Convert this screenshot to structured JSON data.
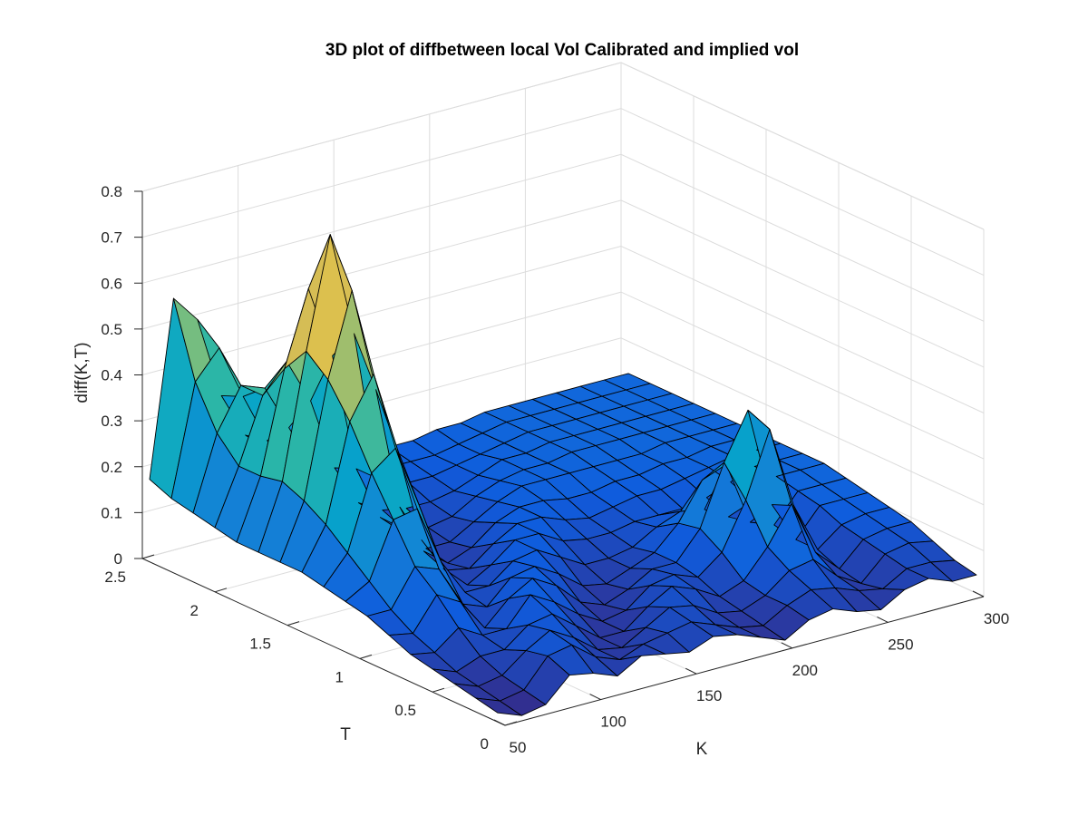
{
  "chart_data": {
    "type": "surface",
    "title": "3D plot of diffbetween local Vol Calibrated and implied vol",
    "xlabel": "K",
    "ylabel": "T",
    "zlabel": "diff(K,T)",
    "xlim": [
      50,
      300
    ],
    "ylim": [
      0,
      2.5
    ],
    "zlim": [
      0,
      0.8
    ],
    "xticks": [
      "50",
      "100",
      "150",
      "200",
      "250",
      "300"
    ],
    "yticks": [
      "0",
      "0.5",
      "1",
      "1.5",
      "2",
      "2.5"
    ],
    "zticks": [
      "0",
      "0.1",
      "0.2",
      "0.3",
      "0.4",
      "0.5",
      "0.6",
      "0.7",
      "0.8"
    ],
    "grid": true,
    "colormap": "parula",
    "colors": {
      "parula": [
        "#352a87",
        "#0f5cdd",
        "#1481d6",
        "#06a4ca",
        "#2eb7a4",
        "#87bf77",
        "#d1bb59",
        "#fcce2e",
        "#f9fb0e"
      ],
      "grid": "#dcdcdc",
      "axis": "#262626",
      "edge": "#000000"
    },
    "K": [
      50,
      62.5,
      75,
      87.5,
      100,
      112.5,
      125,
      137.5,
      150,
      162.5,
      175,
      187.5,
      200,
      212.5,
      225,
      237.5,
      250,
      262.5,
      275,
      287.5,
      300
    ],
    "T": [
      0.05,
      0.2,
      0.35,
      0.5,
      0.65,
      0.8,
      0.95,
      1.1,
      1.25,
      1.4,
      1.55,
      1.7,
      1.85,
      2.0,
      2.15,
      2.3,
      2.45
    ],
    "diff": [
      [
        0.02,
        0.0,
        0.01,
        0.06,
        0.05,
        0.03,
        0.06,
        0.05,
        0.04,
        0.06,
        0.05,
        0.03,
        0.01,
        0.04,
        0.05,
        0.03,
        0.02,
        0.05,
        0.06,
        0.04,
        0.04
      ],
      [
        0.03,
        0.01,
        0.02,
        0.08,
        0.09,
        0.05,
        0.03,
        0.05,
        0.06,
        0.07,
        0.05,
        0.03,
        0.02,
        0.05,
        0.07,
        0.06,
        0.04,
        0.03,
        0.06,
        0.06,
        0.05
      ],
      [
        0.04,
        0.02,
        0.03,
        0.07,
        0.1,
        0.07,
        0.03,
        0.02,
        0.05,
        0.08,
        0.07,
        0.04,
        0.03,
        0.05,
        0.09,
        0.1,
        0.05,
        0.02,
        0.07,
        0.08,
        0.07
      ],
      [
        0.05,
        0.03,
        0.05,
        0.05,
        0.09,
        0.1,
        0.06,
        0.02,
        0.02,
        0.06,
        0.09,
        0.07,
        0.04,
        0.06,
        0.12,
        0.2,
        0.08,
        0.03,
        0.08,
        0.09,
        0.09
      ],
      [
        0.06,
        0.05,
        0.09,
        0.06,
        0.06,
        0.12,
        0.09,
        0.05,
        0.02,
        0.03,
        0.07,
        0.08,
        0.06,
        0.1,
        0.2,
        0.34,
        0.16,
        0.05,
        0.09,
        0.1,
        0.1
      ],
      [
        0.08,
        0.07,
        0.14,
        0.11,
        0.04,
        0.09,
        0.12,
        0.09,
        0.04,
        0.02,
        0.04,
        0.07,
        0.07,
        0.13,
        0.26,
        0.36,
        0.14,
        0.05,
        0.11,
        0.11,
        0.11
      ],
      [
        0.1,
        0.1,
        0.18,
        0.16,
        0.07,
        0.05,
        0.1,
        0.11,
        0.08,
        0.04,
        0.03,
        0.05,
        0.07,
        0.12,
        0.2,
        0.22,
        0.08,
        0.06,
        0.12,
        0.12,
        0.12
      ],
      [
        0.11,
        0.14,
        0.26,
        0.27,
        0.14,
        0.06,
        0.06,
        0.1,
        0.11,
        0.08,
        0.05,
        0.05,
        0.06,
        0.09,
        0.11,
        0.1,
        0.07,
        0.09,
        0.13,
        0.13,
        0.13
      ],
      [
        0.12,
        0.18,
        0.34,
        0.38,
        0.24,
        0.09,
        0.04,
        0.07,
        0.11,
        0.11,
        0.08,
        0.07,
        0.07,
        0.08,
        0.08,
        0.08,
        0.09,
        0.11,
        0.13,
        0.13,
        0.13
      ],
      [
        0.13,
        0.22,
        0.43,
        0.52,
        0.34,
        0.13,
        0.05,
        0.04,
        0.08,
        0.11,
        0.11,
        0.09,
        0.08,
        0.09,
        0.1,
        0.1,
        0.11,
        0.12,
        0.13,
        0.13,
        0.13
      ],
      [
        0.13,
        0.25,
        0.5,
        0.68,
        0.45,
        0.18,
        0.07,
        0.03,
        0.05,
        0.09,
        0.11,
        0.11,
        0.1,
        0.1,
        0.11,
        0.11,
        0.12,
        0.12,
        0.13,
        0.13,
        0.13
      ],
      [
        0.13,
        0.27,
        0.54,
        0.78,
        0.55,
        0.22,
        0.09,
        0.04,
        0.04,
        0.07,
        0.1,
        0.12,
        0.12,
        0.12,
        0.12,
        0.12,
        0.12,
        0.13,
        0.13,
        0.13,
        0.13
      ],
      [
        0.13,
        0.26,
        0.48,
        0.64,
        0.48,
        0.22,
        0.1,
        0.06,
        0.05,
        0.06,
        0.09,
        0.11,
        0.12,
        0.12,
        0.13,
        0.13,
        0.13,
        0.13,
        0.13,
        0.13,
        0.13
      ],
      [
        0.14,
        0.26,
        0.4,
        0.46,
        0.36,
        0.2,
        0.11,
        0.08,
        0.07,
        0.07,
        0.08,
        0.1,
        0.12,
        0.12,
        0.13,
        0.13,
        0.13,
        0.13,
        0.13,
        0.13,
        0.13
      ],
      [
        0.15,
        0.31,
        0.4,
        0.38,
        0.28,
        0.18,
        0.12,
        0.1,
        0.09,
        0.09,
        0.09,
        0.1,
        0.11,
        0.12,
        0.13,
        0.13,
        0.13,
        0.13,
        0.13,
        0.13,
        0.13
      ],
      [
        0.16,
        0.4,
        0.46,
        0.34,
        0.23,
        0.17,
        0.13,
        0.11,
        0.11,
        0.1,
        0.1,
        0.1,
        0.11,
        0.12,
        0.13,
        0.13,
        0.13,
        0.13,
        0.13,
        0.13,
        0.13
      ],
      [
        0.18,
        0.56,
        0.5,
        0.32,
        0.22,
        0.17,
        0.14,
        0.13,
        0.12,
        0.12,
        0.11,
        0.11,
        0.12,
        0.12,
        0.13,
        0.13,
        0.13,
        0.13,
        0.13,
        0.13,
        0.13
      ]
    ]
  }
}
